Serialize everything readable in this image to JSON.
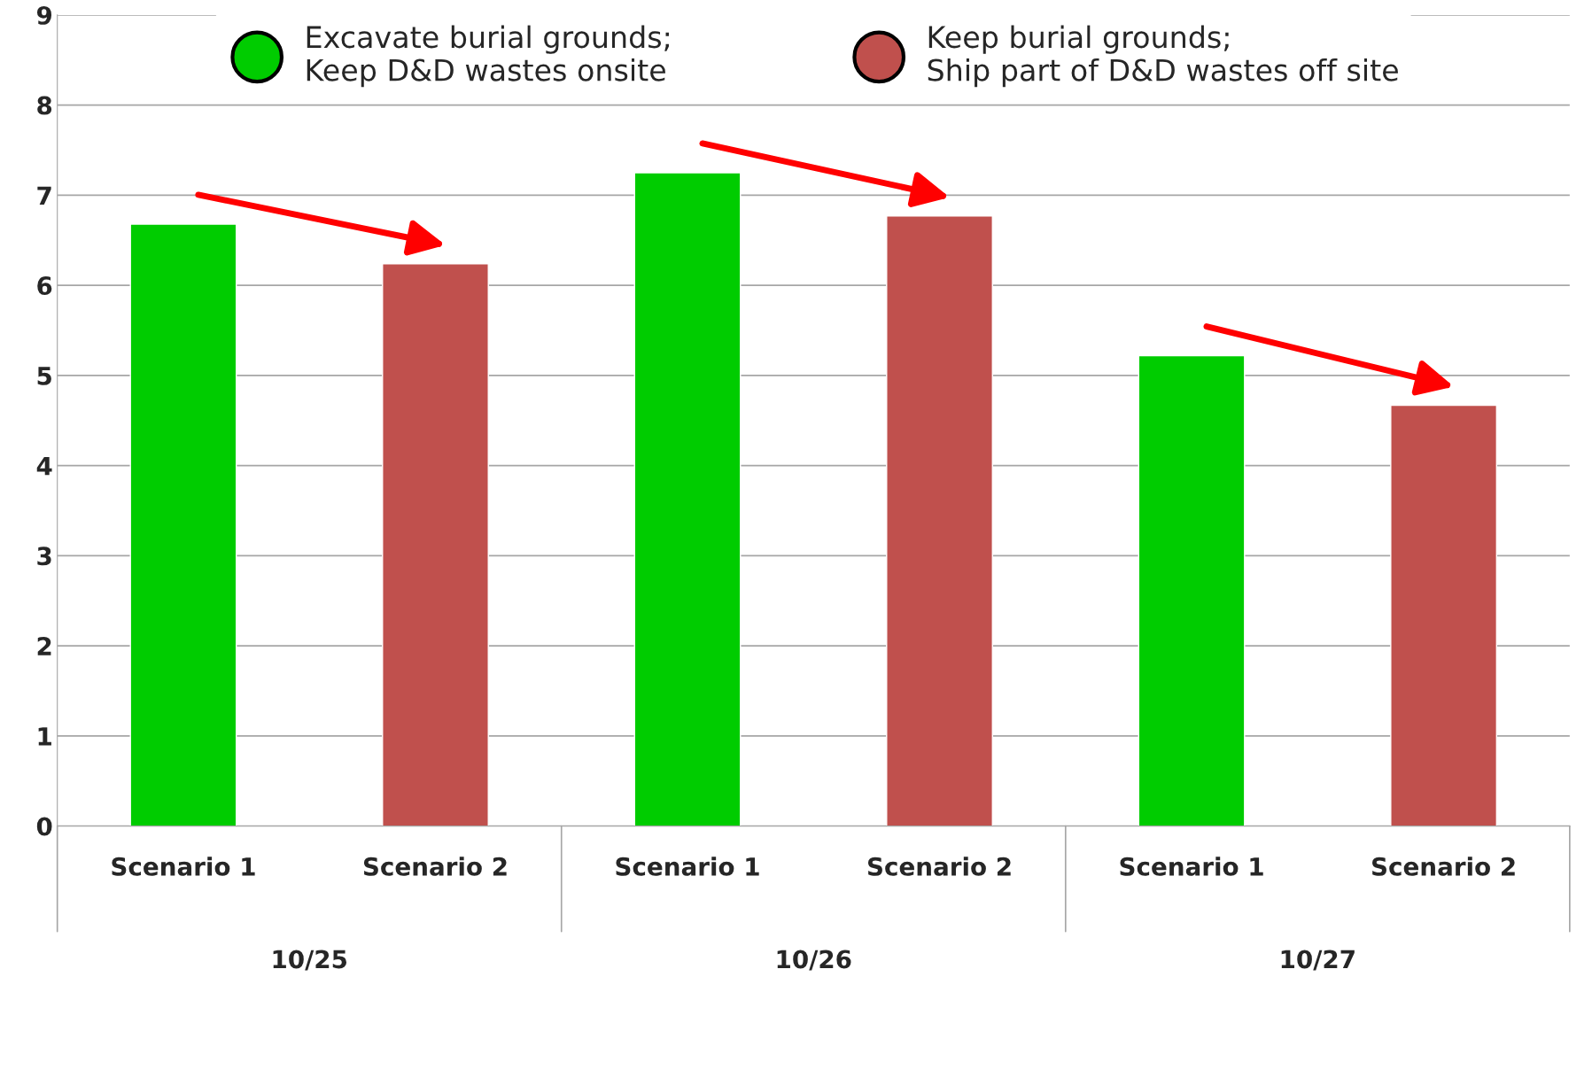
{
  "chart_data": {
    "type": "bar",
    "categories": [
      "Scenario 1",
      "Scenario 2",
      "Scenario 1",
      "Scenario 2",
      "Scenario 1",
      "Scenario 2"
    ],
    "series": [
      {
        "name": "Excavate burial grounds;\nKeep D&D wastes onsite",
        "color": "#00cc00",
        "values": [
          6.68,
          null,
          7.25,
          null,
          5.22,
          null
        ]
      },
      {
        "name": "Keep burial grounds;\nShip part of D&D wastes off site",
        "color": "#c0504d",
        "values": [
          null,
          6.24,
          null,
          6.77,
          null,
          4.67
        ]
      }
    ],
    "annotations": [
      "10/25",
      "10/26",
      "10/27"
    ],
    "ylim": [
      0,
      9
    ],
    "yticks": [
      0,
      1,
      2,
      3,
      4,
      5,
      6,
      7,
      8,
      9
    ],
    "grid": "y",
    "legend": "top"
  }
}
